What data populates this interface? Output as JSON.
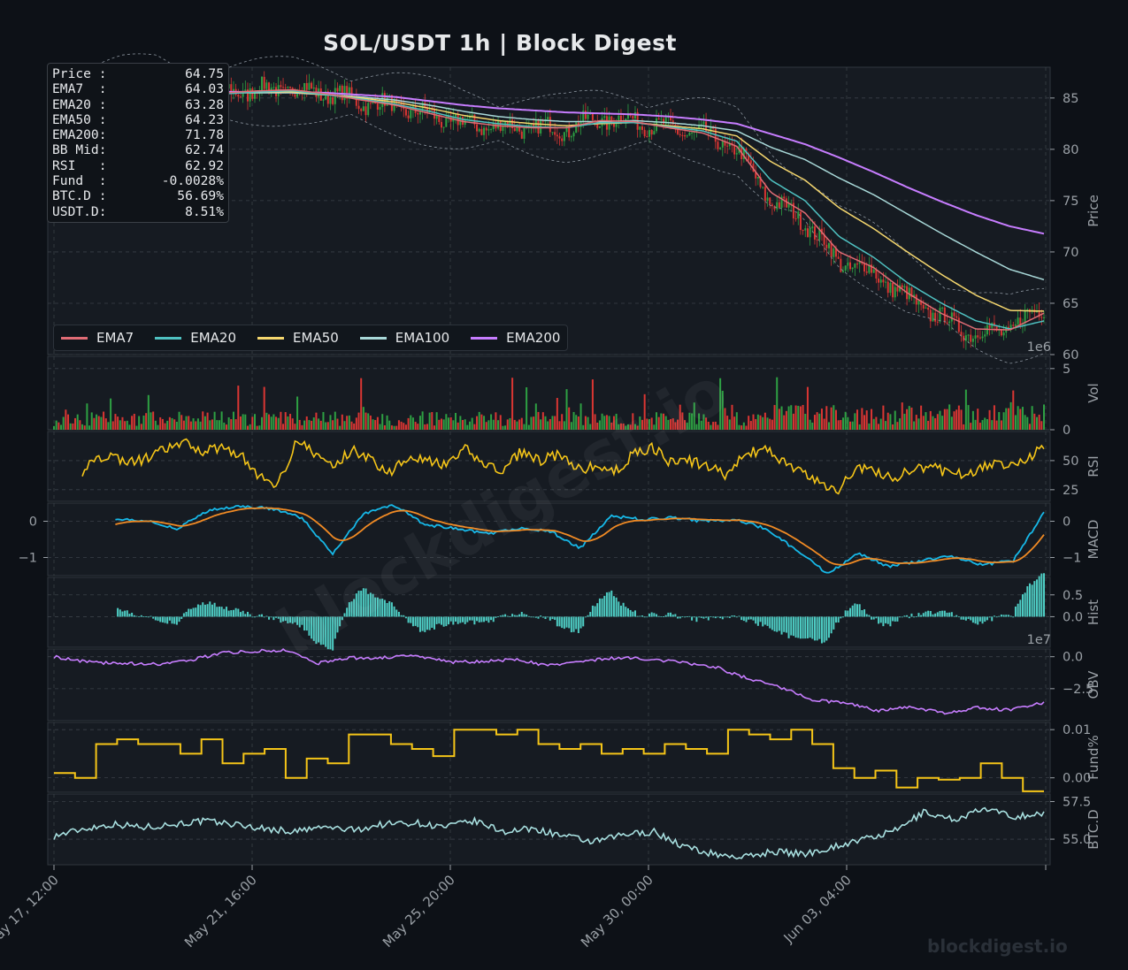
{
  "header": {
    "title": "SOL/USDT  1h  |  Block Digest"
  },
  "watermark": {
    "text": "blockdigest.io",
    "diagonal": "blockdigest.io"
  },
  "info_box": [
    {
      "label": "Price :",
      "value": "64.75"
    },
    {
      "label": "EMA7  :",
      "value": "64.03"
    },
    {
      "label": "EMA20 :",
      "value": "63.28"
    },
    {
      "label": "EMA50 :",
      "value": "64.23"
    },
    {
      "label": "EMA200:",
      "value": "71.78"
    },
    {
      "label": "BB Mid:",
      "value": "62.74"
    },
    {
      "label": "RSI   :",
      "value": "62.92"
    },
    {
      "label": "Fund  :",
      "value": "-0.0028%"
    },
    {
      "label": "BTC.D :",
      "value": "56.69%"
    },
    {
      "label": "USDT.D:",
      "value": "8.51%"
    }
  ],
  "legend": [
    {
      "name": "EMA7",
      "color": "#e06c75"
    },
    {
      "name": "EMA20",
      "color": "#4fc1c1"
    },
    {
      "name": "EMA50",
      "color": "#f5d76e"
    },
    {
      "name": "EMA100",
      "color": "#a8d8d8"
    },
    {
      "name": "EMA200",
      "color": "#c77dff"
    }
  ],
  "colors": {
    "background": "#0d1117",
    "panel": "#161b22",
    "grid": "#3a4048",
    "axis_text": "#9aa0a6",
    "up": "#2ea043",
    "down": "#da3633",
    "rsi": "#f5c518",
    "macd": "#17b8e8",
    "signal": "#f08a24",
    "hist": "#4ecdc4",
    "obv": "#c77dff",
    "funding": "#f5c518",
    "btcd": "#a8e0e0"
  },
  "chart_data": {
    "type": "line",
    "x_ticks": [
      "May 17, 12:00",
      "May 21, 16:00",
      "May 25, 20:00",
      "May 30, 00:00",
      "Jun 03, 04:00"
    ],
    "panels": [
      {
        "id": "price",
        "ylabel": "Price",
        "ylim": [
          60,
          88
        ],
        "ticks": [
          "60",
          "65",
          "70",
          "75",
          "80",
          "85"
        ],
        "offset_label": "1e6",
        "series": [
          {
            "name": "Price",
            "values": [
              84.5,
              85.0,
              86.0,
              86.5,
              84.0,
              85.6,
              85.8,
              85.9,
              85.5,
              84.6,
              84.2,
              83.3,
              82.5,
              82.2,
              82.1,
              82.0,
              83.0,
              82.8,
              82.0,
              81.5,
              80.0,
              75.0,
              73.0,
              69.0,
              68.0,
              65.5,
              63.5,
              62.0,
              62.5,
              64.75
            ]
          },
          {
            "name": "EMA7",
            "values": [
              84.6,
              85.0,
              85.9,
              86.3,
              84.5,
              85.5,
              85.7,
              85.8,
              85.4,
              84.8,
              84.3,
              83.5,
              82.7,
              82.3,
              82.1,
              82.1,
              82.8,
              82.7,
              82.1,
              81.6,
              80.3,
              75.8,
              73.8,
              70.0,
              68.5,
              66.0,
              64.0,
              62.5,
              62.4,
              64.03
            ]
          },
          {
            "name": "EMA20",
            "values": [
              84.7,
              85.0,
              85.8,
              86.1,
              85.0,
              85.4,
              85.6,
              85.7,
              85.3,
              84.9,
              84.4,
              83.7,
              82.9,
              82.5,
              82.2,
              82.1,
              82.6,
              82.6,
              82.2,
              81.8,
              80.8,
              77.0,
              75.0,
              71.5,
              69.5,
              67.0,
              65.0,
              63.3,
              62.5,
              63.28
            ]
          },
          {
            "name": "EMA50",
            "values": [
              84.8,
              85.0,
              85.6,
              85.9,
              85.4,
              85.5,
              85.6,
              85.6,
              85.3,
              85.0,
              84.6,
              84.0,
              83.3,
              82.8,
              82.5,
              82.3,
              82.5,
              82.6,
              82.3,
              82.0,
              81.3,
              78.8,
              77.0,
              74.3,
              72.3,
              70.0,
              67.8,
              65.8,
              64.3,
              64.23
            ]
          },
          {
            "name": "EMA100",
            "values": [
              84.9,
              85.0,
              85.4,
              85.6,
              85.4,
              85.5,
              85.5,
              85.5,
              85.3,
              85.1,
              84.8,
              84.3,
              83.7,
              83.2,
              82.9,
              82.7,
              82.7,
              82.8,
              82.6,
              82.3,
              81.8,
              80.2,
              79.0,
              77.2,
              75.6,
              73.7,
              71.8,
              70.0,
              68.3,
              67.3
            ]
          },
          {
            "name": "EMA200",
            "values": [
              85.0,
              85.1,
              85.3,
              85.5,
              85.5,
              85.6,
              85.6,
              85.6,
              85.5,
              85.3,
              85.1,
              84.7,
              84.3,
              84.0,
              83.8,
              83.6,
              83.5,
              83.4,
              83.2,
              82.9,
              82.5,
              81.5,
              80.5,
              79.2,
              77.8,
              76.3,
              74.9,
              73.6,
              72.5,
              71.78
            ]
          }
        ]
      },
      {
        "id": "vol",
        "ylabel": "Vol",
        "ylim": [
          0,
          6
        ],
        "ticks": [
          "0",
          "5"
        ]
      },
      {
        "id": "rsi",
        "ylabel": "RSI",
        "ylim": [
          15,
          75
        ],
        "ticks": [
          "25",
          "50"
        ],
        "series": [
          {
            "name": "RSI",
            "values": [
              24,
              30,
              50,
              55,
              48,
              52,
              60,
              65,
              58,
              62,
              55,
              35,
              30,
              68,
              55,
              45,
              60,
              50,
              40,
              55,
              50,
              45,
              60,
              48,
              40,
              58,
              50,
              55,
              42,
              45,
              40,
              55,
              62,
              48,
              50,
              45,
              38,
              55,
              60,
              50,
              40,
              30,
              25,
              45,
              40,
              35,
              42,
              45,
              38,
              40,
              45,
              48,
              50,
              62.92
            ]
          }
        ]
      },
      {
        "id": "macd",
        "ylabel": "MACD",
        "ylim": [
          -1.5,
          0.5
        ],
        "ticks": [
          "0",
          "−1"
        ]
      },
      {
        "id": "hist",
        "ylabel": "Hist",
        "ylim": [
          -0.7,
          0.9
        ],
        "ticks": [
          "0.0",
          "0.5"
        ],
        "offset_label": "1e7"
      },
      {
        "id": "obv",
        "ylabel": "OBV",
        "ylim": [
          -5.0,
          0.6
        ],
        "ticks": [
          "0.0",
          "−2.5"
        ]
      },
      {
        "id": "funding",
        "ylabel": "Fund%",
        "ylim": [
          -0.003,
          0.0115
        ],
        "ticks": [
          "0.00",
          "0.01"
        ]
      },
      {
        "id": "btcd",
        "ylabel": "BTC.D",
        "ylim": [
          53.3,
          58.0
        ],
        "ticks": [
          "55.0",
          "57.5"
        ]
      }
    ]
  }
}
